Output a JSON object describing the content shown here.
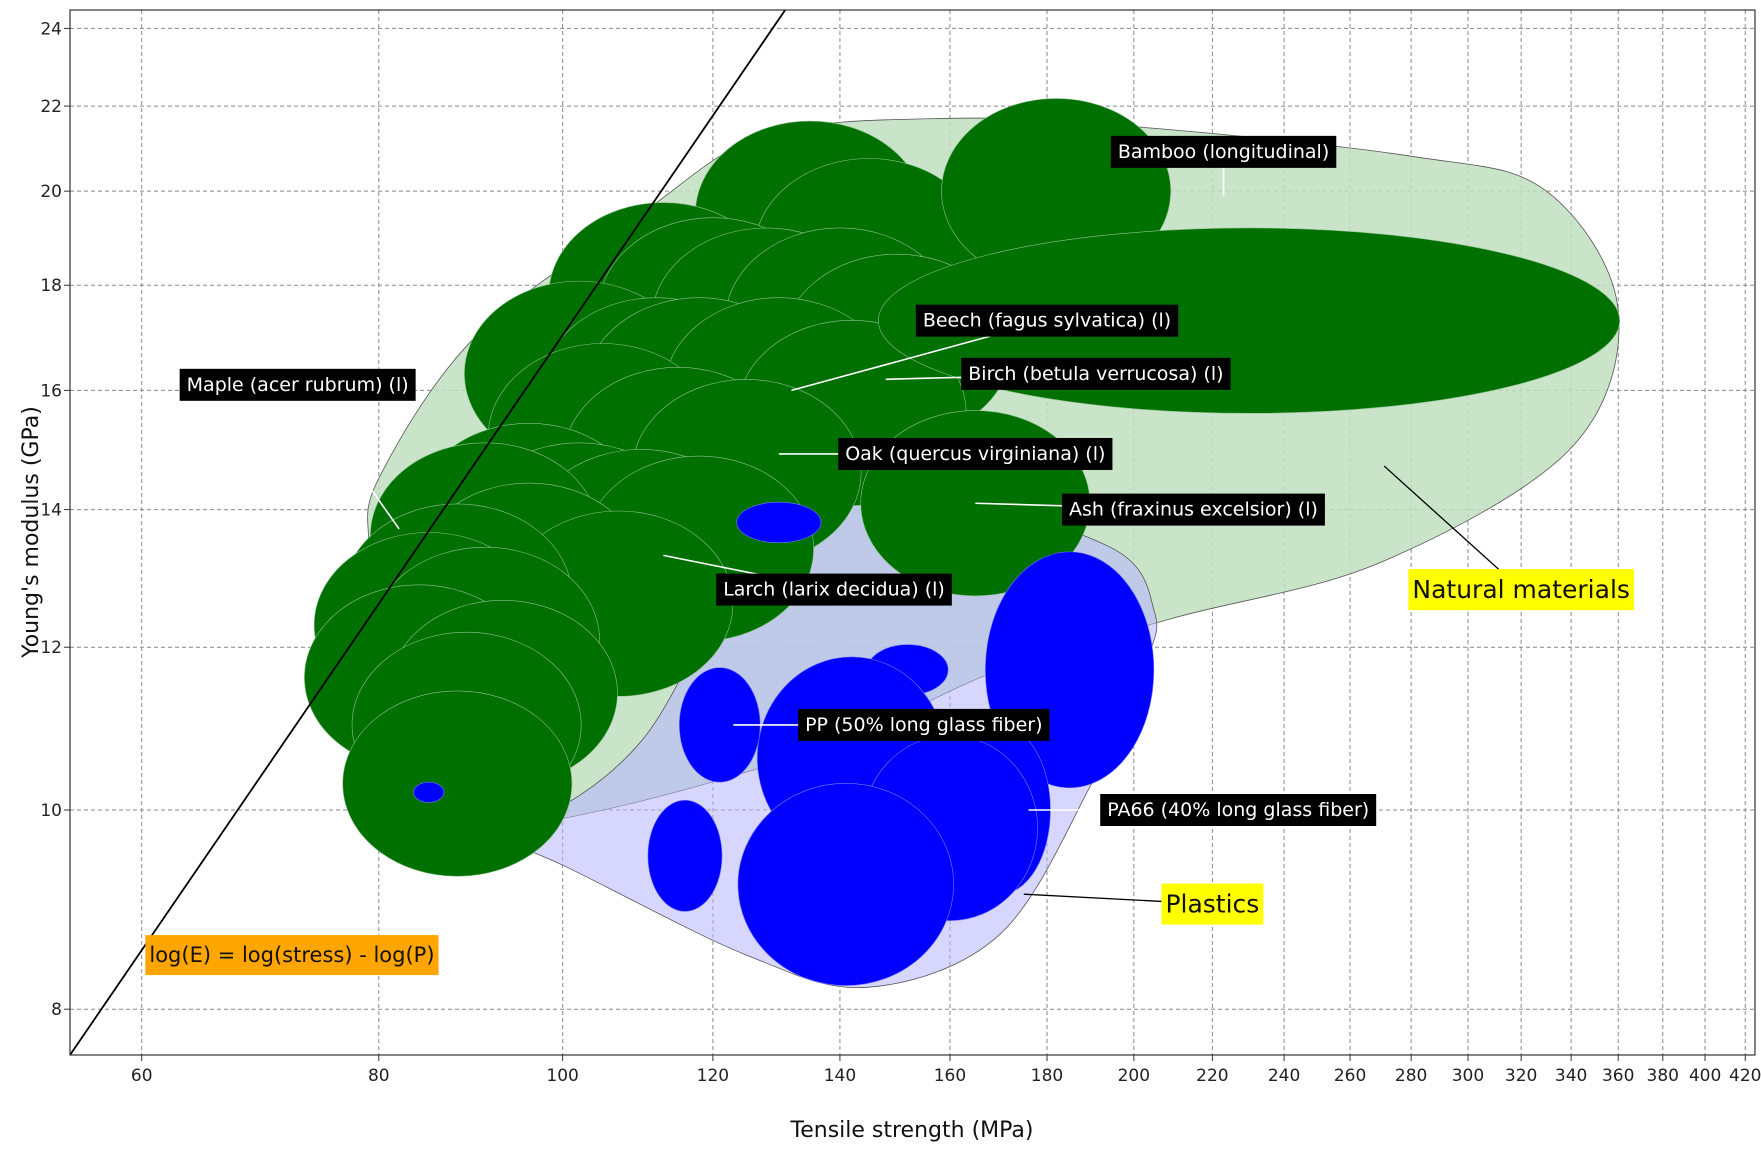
{
  "chart_data": {
    "type": "scatter",
    "title": "",
    "xlabel": "Tensile strength (MPa)",
    "ylabel": "Young's modulus (GPa)",
    "xscale": "log",
    "yscale": "log",
    "xlim": [
      55,
      425
    ],
    "ylim": [
      7.6,
      24.5
    ],
    "grid": true,
    "x_ticks": [
      60,
      80,
      100,
      120,
      140,
      160,
      180,
      200,
      220,
      240,
      260,
      280,
      300,
      320,
      340,
      360,
      380,
      400,
      420
    ],
    "y_ticks": [
      8,
      10,
      12,
      14,
      16,
      18,
      20,
      22,
      24
    ],
    "colors": {
      "natural_material": "#007000",
      "plastic": "#0000ff",
      "natural_envelope": "#bfdfbf",
      "plastics_envelope": "#b4b4ff",
      "label_bg": "#000000",
      "callout_bg": "#ffff00",
      "equation_bg": "#ffa500"
    },
    "envelopes": [
      {
        "label": "Natural materials",
        "color": "#bfdfbf",
        "points": [
          [
            80,
            14.5
          ],
          [
            90,
            17.0
          ],
          [
            110,
            19.5
          ],
          [
            128,
            21.3
          ],
          [
            160,
            21.7
          ],
          [
            200,
            21.5
          ],
          [
            280,
            20.8
          ],
          [
            330,
            20.0
          ],
          [
            360,
            17.5
          ],
          [
            340,
            15.0
          ],
          [
            270,
            13.2
          ],
          [
            210,
            12.4
          ],
          [
            170,
            11.7
          ],
          [
            140,
            10.8
          ],
          [
            110,
            10.1
          ],
          [
            88,
            9.7
          ],
          [
            82,
            9.7
          ],
          [
            80,
            10.3
          ],
          [
            79,
            12.0
          ],
          [
            79,
            13.4
          ]
        ]
      },
      {
        "label": "Plastics",
        "color": "#b4b4ff",
        "points": [
          [
            95,
            9.8
          ],
          [
            110,
            10.8
          ],
          [
            130,
            13.8
          ],
          [
            160,
            14.1
          ],
          [
            195,
            13.4
          ],
          [
            205,
            12.5
          ],
          [
            203,
            11.8
          ],
          [
            190,
            10.3
          ],
          [
            170,
            8.7
          ],
          [
            145,
            8.2
          ],
          [
            125,
            8.5
          ],
          [
            100,
            9.4
          ],
          [
            90,
            9.8
          ]
        ]
      }
    ],
    "series": [
      {
        "category": "natural",
        "color": "#007000",
        "points": [
          {
            "x": 135,
            "y": 19.5,
            "rx": 0.068,
            "ry": 0.055
          },
          {
            "x": 145,
            "y": 18.7,
            "rx": 0.068,
            "ry": 0.055
          },
          {
            "x": 113,
            "y": 17.8,
            "rx": 0.068,
            "ry": 0.055
          },
          {
            "x": 120,
            "y": 17.5,
            "rx": 0.068,
            "ry": 0.055
          },
          {
            "x": 128,
            "y": 17.3,
            "rx": 0.068,
            "ry": 0.055
          },
          {
            "x": 140,
            "y": 17.3,
            "rx": 0.068,
            "ry": 0.055
          },
          {
            "x": 150,
            "y": 16.8,
            "rx": 0.068,
            "ry": 0.055
          },
          {
            "x": 102,
            "y": 16.3,
            "rx": 0.068,
            "ry": 0.055
          },
          {
            "x": 112,
            "y": 16.0,
            "rx": 0.068,
            "ry": 0.055
          },
          {
            "x": 118,
            "y": 16.0,
            "rx": 0.068,
            "ry": 0.055
          },
          {
            "x": 130,
            "y": 16.0,
            "rx": 0.068,
            "ry": 0.055
          },
          {
            "x": 142,
            "y": 15.6,
            "rx": 0.068,
            "ry": 0.055
          },
          {
            "x": 105,
            "y": 15.2,
            "rx": 0.068,
            "ry": 0.055
          },
          {
            "x": 115,
            "y": 14.8,
            "rx": 0.068,
            "ry": 0.055
          },
          {
            "x": 125,
            "y": 14.6,
            "rx": 0.068,
            "ry": 0.055
          },
          {
            "x": 96,
            "y": 13.9,
            "rx": 0.068,
            "ry": 0.055
          },
          {
            "x": 102,
            "y": 13.6,
            "rx": 0.068,
            "ry": 0.055
          },
          {
            "x": 110,
            "y": 13.5,
            "rx": 0.068,
            "ry": 0.055
          },
          {
            "x": 118,
            "y": 13.4,
            "rx": 0.068,
            "ry": 0.055
          },
          {
            "x": 91,
            "y": 13.6,
            "rx": 0.068,
            "ry": 0.055
          },
          {
            "x": 96,
            "y": 13.0,
            "rx": 0.068,
            "ry": 0.055
          },
          {
            "x": 107,
            "y": 12.6,
            "rx": 0.068,
            "ry": 0.055
          },
          {
            "x": 88,
            "y": 12.7,
            "rx": 0.068,
            "ry": 0.055
          },
          {
            "x": 85,
            "y": 12.3,
            "rx": 0.068,
            "ry": 0.055
          },
          {
            "x": 91,
            "y": 12.1,
            "rx": 0.068,
            "ry": 0.055
          },
          {
            "x": 84,
            "y": 11.6,
            "rx": 0.068,
            "ry": 0.055
          },
          {
            "x": 93,
            "y": 11.4,
            "rx": 0.068,
            "ry": 0.055
          },
          {
            "x": 89,
            "y": 11.0,
            "rx": 0.068,
            "ry": 0.055
          },
          {
            "x": 88,
            "y": 10.3,
            "rx": 0.068,
            "ry": 0.055
          },
          {
            "x": 165,
            "y": 14.1,
            "rx": 0.068,
            "ry": 0.055
          },
          {
            "x": 182,
            "y": 20.0,
            "rx": 0.068,
            "ry": 0.055
          },
          {
            "x": 230,
            "y": 17.3,
            "rx": 0.22,
            "ry": 0.055
          }
        ]
      },
      {
        "category": "plastic",
        "color": "#0000ff",
        "points": [
          {
            "x": 130,
            "y": 13.8,
            "rx": 0.025,
            "ry": 0.012
          },
          {
            "x": 85,
            "y": 10.2,
            "rx": 0.009,
            "ry": 0.006
          },
          {
            "x": 152,
            "y": 11.7,
            "rx": 0.024,
            "ry": 0.015
          },
          {
            "x": 121,
            "y": 11.0,
            "rx": 0.024,
            "ry": 0.034
          },
          {
            "x": 116,
            "y": 9.5,
            "rx": 0.022,
            "ry": 0.033
          },
          {
            "x": 185,
            "y": 11.7,
            "rx": 0.05,
            "ry": 0.07
          },
          {
            "x": 170,
            "y": 10.0,
            "rx": 0.03,
            "ry": 0.05
          },
          {
            "x": 142,
            "y": 10.6,
            "rx": 0.056,
            "ry": 0.06
          },
          {
            "x": 160,
            "y": 9.8,
            "rx": 0.052,
            "ry": 0.055
          },
          {
            "x": 141,
            "y": 9.2,
            "rx": 0.064,
            "ry": 0.06
          }
        ]
      }
    ],
    "labels": [
      {
        "text": "Bamboo (longitudinal)",
        "x": 223,
        "y": 20.9,
        "target": [
          223,
          19.9
        ]
      },
      {
        "text": "Beech (fagus sylvatica) (l)",
        "x": 180,
        "y": 17.3,
        "target": [
          132,
          16.0
        ]
      },
      {
        "text": "Birch (betula verrucosa) (l)",
        "x": 191,
        "y": 16.3,
        "target": [
          148,
          16.2
        ]
      },
      {
        "text": "Maple (acer rubrum) (l)",
        "x": 72.5,
        "y": 16.1,
        "target": [
          82,
          13.7
        ]
      },
      {
        "text": "Oak (quercus virginiana) (l)",
        "x": 165,
        "y": 14.9,
        "target": [
          130,
          14.9
        ]
      },
      {
        "text": "Ash (fraxinus excelsior) (l)",
        "x": 215,
        "y": 14.0,
        "target": [
          165,
          14.1
        ]
      },
      {
        "text": "Larch (larix decidua) (l)",
        "x": 139,
        "y": 12.8,
        "target": [
          113,
          13.3
        ]
      },
      {
        "text": "PP (50% long glass fiber)",
        "x": 155,
        "y": 11.0,
        "target": [
          123,
          11.0
        ]
      },
      {
        "text": "PA66 (40% long glass fiber)",
        "x": 227,
        "y": 10.0,
        "target": [
          176,
          10.0
        ]
      }
    ],
    "callouts": [
      {
        "text": "Natural materials",
        "x": 320,
        "y": 12.8,
        "target": [
          271,
          14.7
        ]
      },
      {
        "text": "Plastics",
        "x": 220,
        "y": 9.0,
        "target": [
          175,
          9.1
        ]
      }
    ],
    "reference_line": {
      "label": "log(E) = log(stress) - log(P)",
      "points": [
        [
          55,
          7.6
        ],
        [
          131,
          24.5
        ]
      ],
      "label_x": 72,
      "label_y": 8.5
    }
  }
}
